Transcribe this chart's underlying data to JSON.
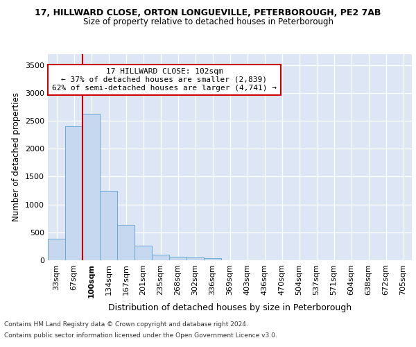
{
  "title_line1": "17, HILLWARD CLOSE, ORTON LONGUEVILLE, PETERBOROUGH, PE2 7AB",
  "title_line2": "Size of property relative to detached houses in Peterborough",
  "xlabel": "Distribution of detached houses by size in Peterborough",
  "ylabel": "Number of detached properties",
  "footer_line1": "Contains HM Land Registry data © Crown copyright and database right 2024.",
  "footer_line2": "Contains public sector information licensed under the Open Government Licence v3.0.",
  "annotation_title": "17 HILLWARD CLOSE: 102sqm",
  "annotation_line2": "← 37% of detached houses are smaller (2,839)",
  "annotation_line3": "62% of semi-detached houses are larger (4,741) →",
  "bar_color": "#c5d8ef",
  "bar_edge_color": "#6aaad4",
  "vline_color": "#cc0000",
  "annotation_box_edgecolor": "#cc0000",
  "background_color": "#dce6f5",
  "categories": [
    "33sqm",
    "67sqm",
    "100sqm",
    "134sqm",
    "167sqm",
    "201sqm",
    "235sqm",
    "268sqm",
    "302sqm",
    "336sqm",
    "369sqm",
    "403sqm",
    "436sqm",
    "470sqm",
    "504sqm",
    "537sqm",
    "571sqm",
    "604sqm",
    "638sqm",
    "672sqm",
    "705sqm"
  ],
  "values": [
    390,
    2400,
    2620,
    1240,
    635,
    260,
    95,
    60,
    55,
    40,
    0,
    0,
    0,
    0,
    0,
    0,
    0,
    0,
    0,
    0,
    0
  ],
  "ylim": [
    0,
    3700
  ],
  "yticks": [
    0,
    500,
    1000,
    1500,
    2000,
    2500,
    3000,
    3500
  ],
  "vline_x": 1.5,
  "highlighted_tick_index": 2
}
